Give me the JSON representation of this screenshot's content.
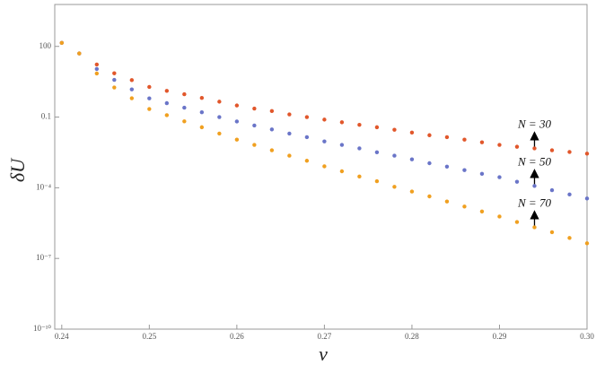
{
  "chart_data": {
    "type": "scatter",
    "log_y": true,
    "x_label": "ν",
    "y_label": "δU",
    "x": [
      0.24,
      0.242,
      0.244,
      0.246,
      0.248,
      0.25,
      0.252,
      0.254,
      0.256,
      0.258,
      0.26,
      0.262,
      0.264,
      0.266,
      0.268,
      0.27,
      0.272,
      0.274,
      0.276,
      0.278,
      0.28,
      0.282,
      0.284,
      0.286,
      0.288,
      0.29,
      0.292,
      0.294,
      0.296,
      0.298,
      0.3
    ],
    "series": [
      {
        "name": "N = 30",
        "color": "#e1572b",
        "values": [
          141,
          50,
          17,
          7.2,
          3.7,
          1.9,
          1.3,
          0.93,
          0.65,
          0.45,
          0.31,
          0.23,
          0.18,
          0.13,
          0.1,
          0.078,
          0.06,
          0.047,
          0.037,
          0.029,
          0.022,
          0.017,
          0.014,
          0.011,
          0.0085,
          0.0066,
          0.0055,
          0.0047,
          0.0039,
          0.0033,
          0.0028
        ]
      },
      {
        "name": "N = 50",
        "color": "#6a75c8",
        "values": [
          141,
          50,
          11,
          3.8,
          1.5,
          0.62,
          0.39,
          0.25,
          0.16,
          0.1,
          0.065,
          0.044,
          0.03,
          0.02,
          0.014,
          0.0093,
          0.0066,
          0.0047,
          0.0032,
          0.0023,
          0.0016,
          0.0011,
          0.00079,
          0.00056,
          0.00039,
          0.00028,
          0.00018,
          0.00012,
          7.9e-05,
          5.2e-05,
          3.5e-05
        ]
      },
      {
        "name": "N = 70",
        "color": "#f0a020",
        "values": [
          141,
          50,
          7.1,
          1.8,
          0.63,
          0.22,
          0.12,
          0.066,
          0.037,
          0.02,
          0.011,
          0.0066,
          0.0039,
          0.0023,
          0.0014,
          0.00081,
          0.0005,
          0.0003,
          0.00019,
          0.00011,
          6.9e-05,
          4.3e-05,
          2.6e-05,
          1.6e-05,
          9.8e-06,
          6e-06,
          3.5e-06,
          2.1e-06,
          1.3e-06,
          7.4e-07,
          4.4e-07
        ]
      }
    ],
    "xlim": [
      0.2392,
      0.3
    ],
    "xticks": [
      0.24,
      0.25,
      0.26,
      0.27,
      0.28,
      0.29,
      {
        "value": 0.3,
        "label": "0.30"
      }
    ],
    "ylim": [
      1e-10,
      6000
    ],
    "yticks": [
      100,
      0.1,
      {
        "value": 0.0001,
        "label": "10⁻⁴"
      },
      {
        "value": 1e-07,
        "label": "10⁻⁷"
      },
      {
        "value": 1e-10,
        "label": "10⁻¹⁰"
      }
    ]
  }
}
